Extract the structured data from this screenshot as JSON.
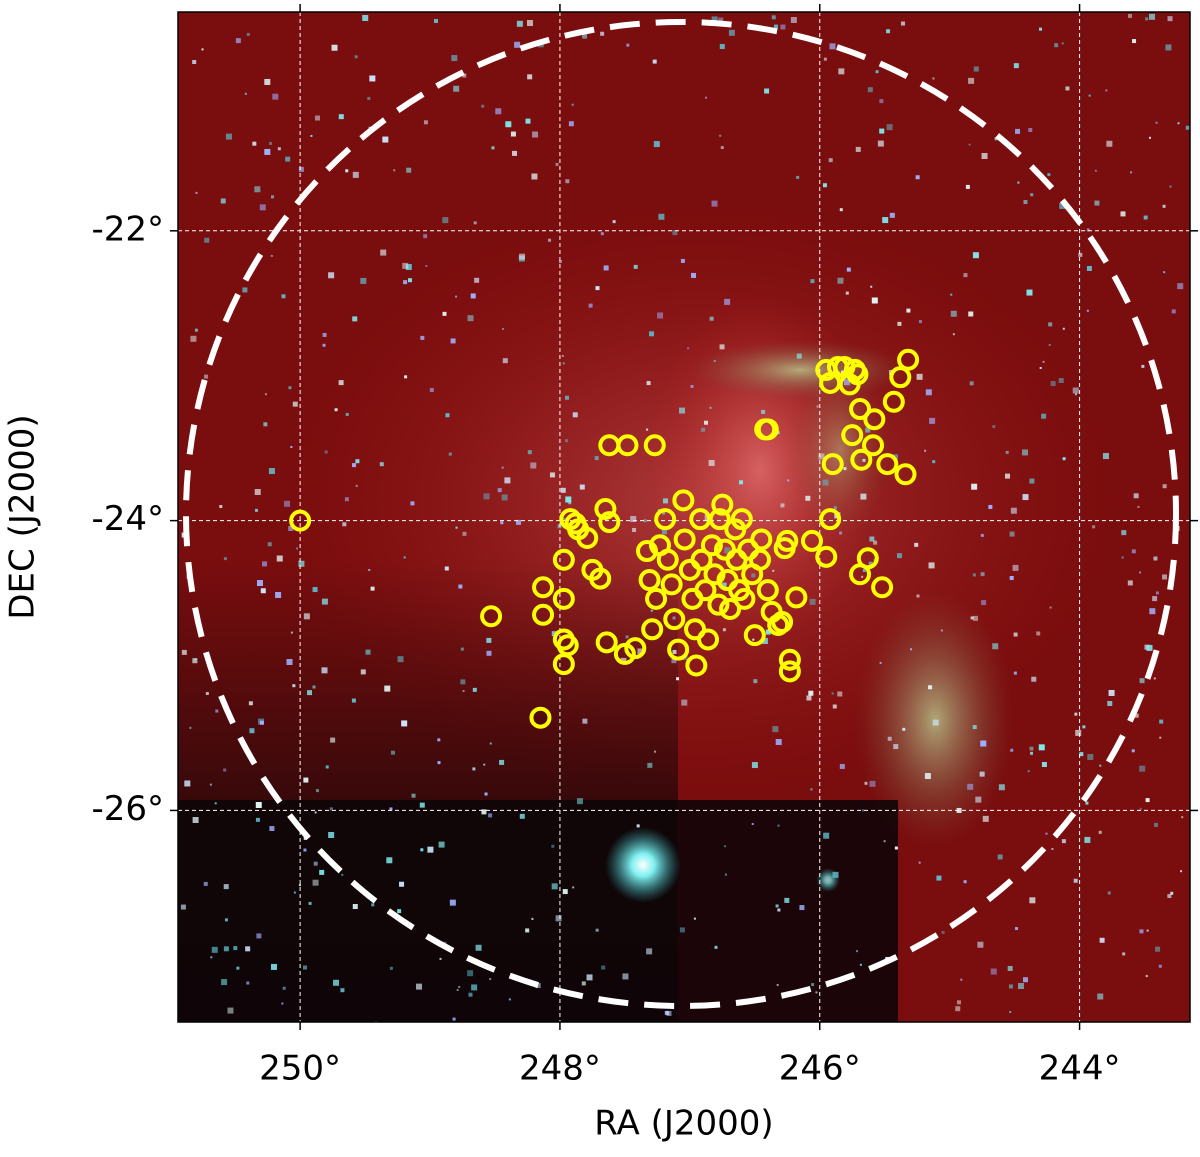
{
  "chart_data": {
    "type": "scatter",
    "x_label": "RA (J2000)",
    "y_label": "DEC (J2000)",
    "xlim": [
      250.94,
      243.15
    ],
    "ylim": [
      -27.46,
      -20.49
    ],
    "xticks": [
      {
        "value": 250,
        "label": "250°"
      },
      {
        "value": 248,
        "label": "248°"
      },
      {
        "value": 246,
        "label": "246°"
      },
      {
        "value": 244,
        "label": "244°"
      }
    ],
    "yticks": [
      {
        "value": -22,
        "label": "-22°"
      },
      {
        "value": -24,
        "label": "-24°"
      },
      {
        "value": -26,
        "label": "-26°"
      }
    ],
    "grid": true,
    "color": "#ffff00",
    "x": [
      250.0,
      248.53,
      248.15,
      248.13,
      248.13,
      247.97,
      247.97,
      247.97,
      247.97,
      247.94,
      247.92,
      247.88,
      247.86,
      247.79,
      247.75,
      247.69,
      247.65,
      247.62,
      247.64,
      247.62,
      247.5,
      247.48,
      247.42,
      247.27,
      247.33,
      247.31,
      247.29,
      247.26,
      247.23,
      247.19,
      247.17,
      247.14,
      247.12,
      247.09,
      247.05,
      247.04,
      247.0,
      246.98,
      246.96,
      246.95,
      246.92,
      246.91,
      246.88,
      246.86,
      246.83,
      246.81,
      246.78,
      246.77,
      246.75,
      246.73,
      246.71,
      246.69,
      246.65,
      246.64,
      246.62,
      246.6,
      246.58,
      246.55,
      246.52,
      246.5,
      246.46,
      246.45,
      246.42,
      246.4,
      246.4,
      246.37,
      246.32,
      246.29,
      246.27,
      246.23,
      246.23,
      246.18,
      246.25,
      246.06,
      245.95,
      245.92,
      245.9,
      245.92,
      245.95,
      245.86,
      245.81,
      245.77,
      245.73,
      245.71,
      245.69,
      245.75,
      245.68,
      245.63,
      245.69,
      245.59,
      245.58,
      245.52,
      245.48,
      245.43,
      245.38,
      245.32,
      245.34
    ],
    "values": [
      -24.0,
      -24.66,
      -25.36,
      -24.46,
      -24.65,
      -24.27,
      -24.54,
      -24.82,
      -24.99,
      -24.86,
      -23.99,
      -24.02,
      -24.06,
      -24.12,
      -24.34,
      -24.4,
      -23.92,
      -24.01,
      -24.84,
      -23.48,
      -24.92,
      -23.48,
      -24.88,
      -23.48,
      -24.21,
      -24.41,
      -24.75,
      -24.54,
      -24.17,
      -23.99,
      -24.27,
      -24.44,
      -24.68,
      -24.89,
      -23.86,
      -24.13,
      -24.34,
      -24.54,
      -24.75,
      -25.0,
      -23.99,
      -24.27,
      -24.48,
      -24.82,
      -24.17,
      -24.37,
      -24.58,
      -23.99,
      -23.89,
      -24.2,
      -24.41,
      -24.61,
      -24.06,
      -24.27,
      -24.48,
      -23.99,
      -24.54,
      -24.2,
      -24.37,
      -24.79,
      -24.27,
      -24.13,
      -23.37,
      -23.37,
      -24.48,
      -24.63,
      -24.72,
      -24.7,
      -24.19,
      -24.96,
      -25.04,
      -24.53,
      -24.14,
      -24.14,
      -24.25,
      -23.99,
      -23.61,
      -23.05,
      -22.96,
      -22.94,
      -22.94,
      -23.06,
      -22.96,
      -22.99,
      -23.23,
      -23.41,
      -23.58,
      -24.26,
      -24.37,
      -23.48,
      -23.3,
      -24.46,
      -23.61,
      -23.18,
      -23.01,
      -22.89,
      -23.68
    ]
  }
}
